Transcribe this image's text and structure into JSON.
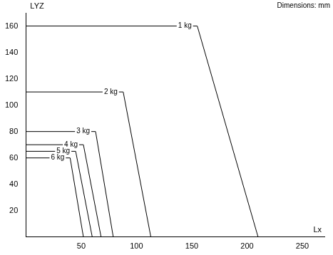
{
  "chart_data": {
    "type": "line",
    "x_label": "Lx",
    "y_label": "LYZ",
    "annotations": [
      "Dimensions: mm"
    ],
    "series": [
      {
        "name": "1 kg",
        "color": "#000000",
        "x": [
          0,
          155,
          210
        ],
        "values": [
          160,
          160,
          0
        ]
      },
      {
        "name": "2 kg",
        "color": "#000000",
        "x": [
          0,
          88,
          113
        ],
        "values": [
          110,
          110,
          0
        ]
      },
      {
        "name": "3 kg",
        "color": "#000000",
        "x": [
          0,
          63,
          79
        ],
        "values": [
          80,
          80,
          0
        ]
      },
      {
        "name": "4 kg",
        "color": "#000000",
        "x": [
          0,
          52,
          68
        ],
        "values": [
          70,
          70,
          0
        ]
      },
      {
        "name": "5 kg",
        "color": "#000000",
        "x": [
          0,
          45,
          60
        ],
        "values": [
          65,
          65,
          0
        ]
      },
      {
        "name": "6 kg",
        "color": "#000000",
        "x": [
          0,
          40,
          52
        ],
        "values": [
          60,
          60,
          0
        ]
      }
    ],
    "xlim": [
      0,
      270
    ],
    "xticks": [
      50,
      100,
      150,
      200,
      250
    ],
    "ylim": [
      0,
      170
    ],
    "yticks": [
      20,
      40,
      60,
      80,
      100,
      120,
      140,
      160
    ],
    "grid": false
  }
}
